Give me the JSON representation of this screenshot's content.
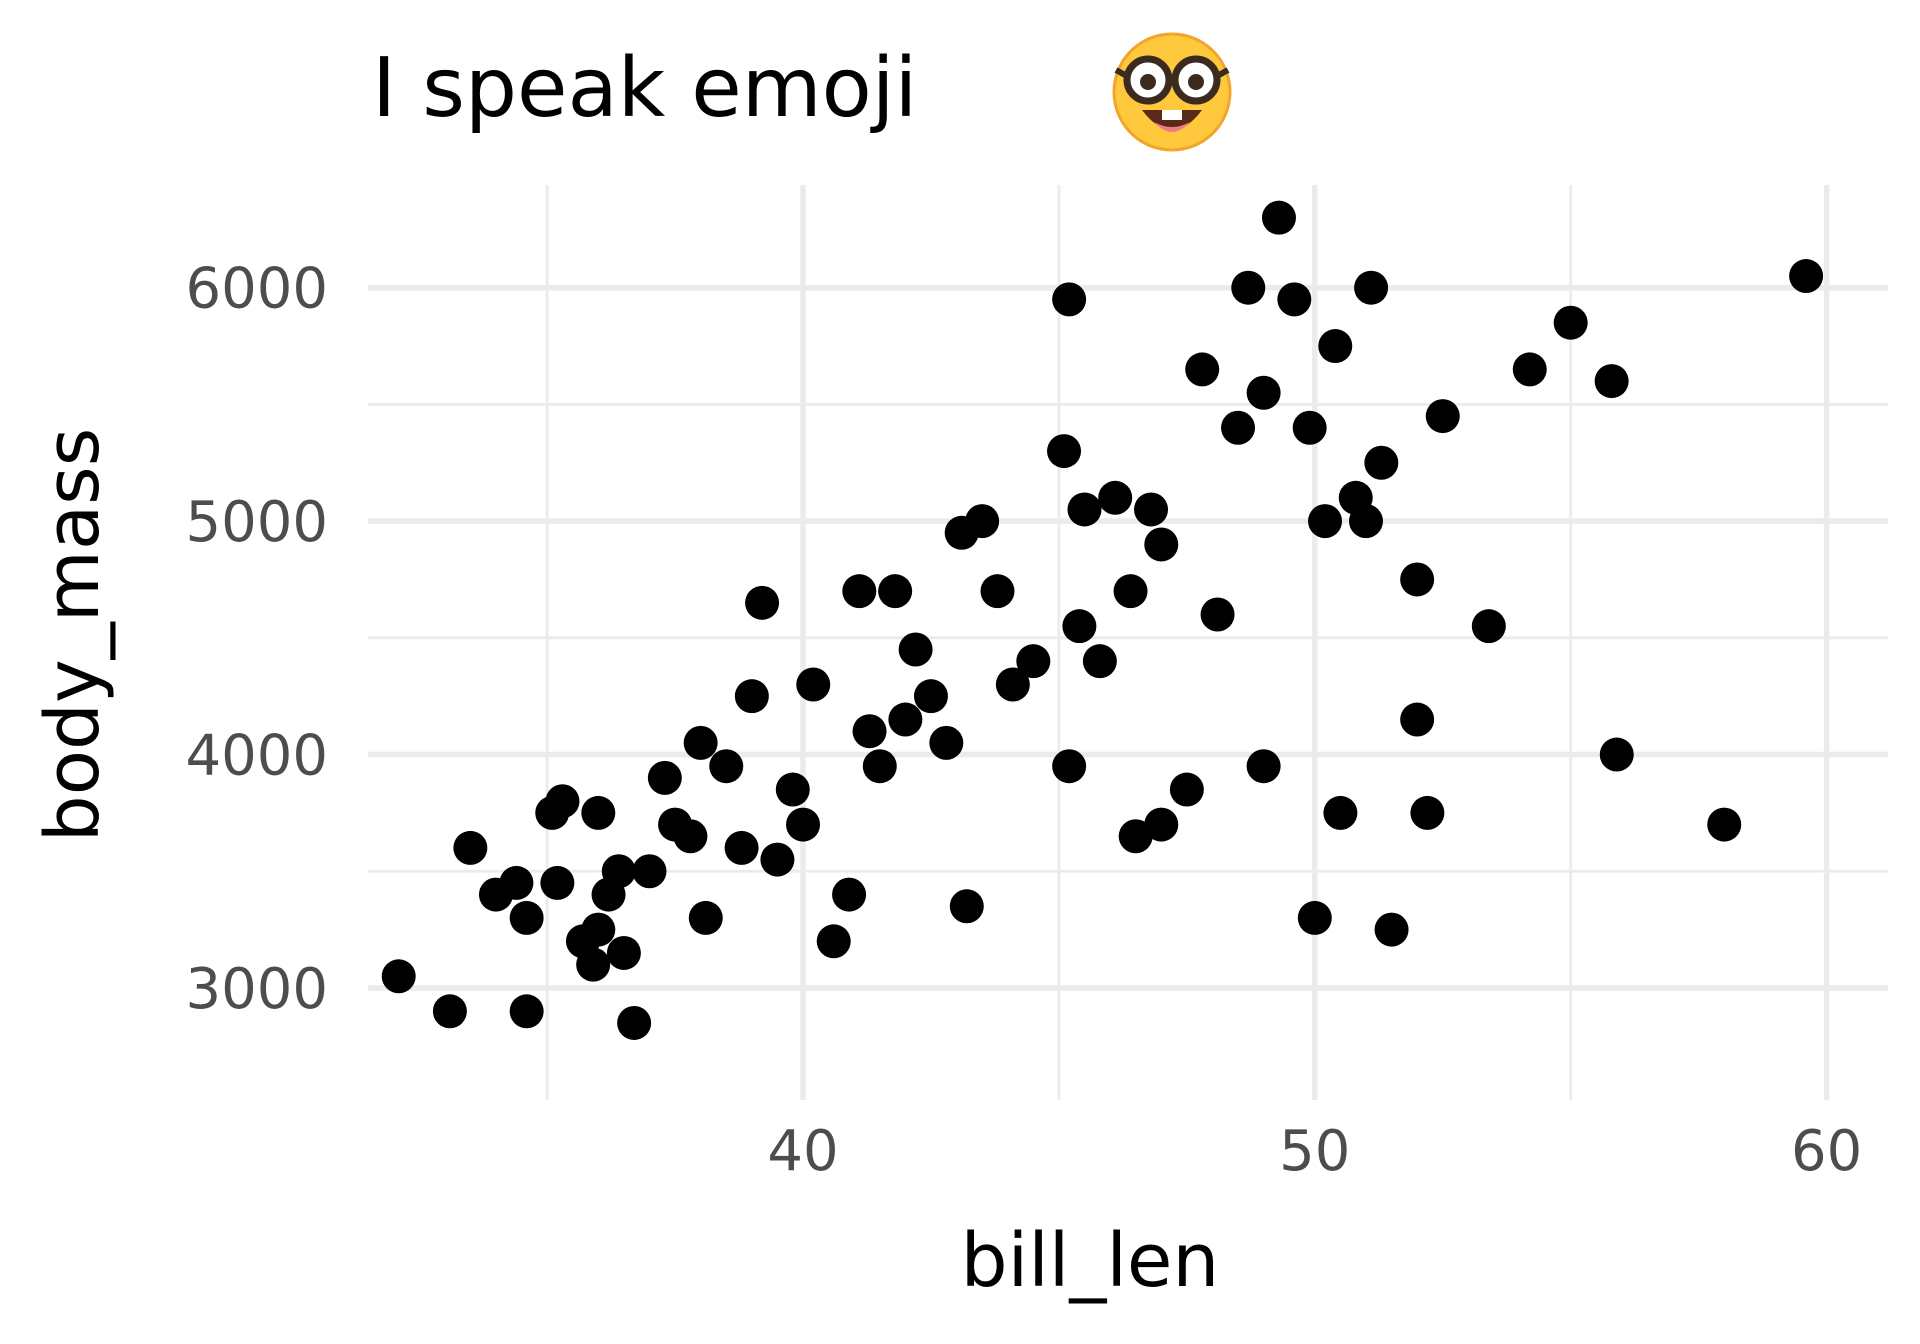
{
  "chart_data": {
    "type": "scatter",
    "title": "I speak emoji",
    "title_emoji": "nerd-face-emoji",
    "xlabel": "bill_len",
    "ylabel": "body_mass",
    "xlim": [
      31.5,
      61.2
    ],
    "ylim": [
      2520,
      6440
    ],
    "x_ticks": [
      {
        "value": 40,
        "label": "40"
      },
      {
        "value": 50,
        "label": "50"
      },
      {
        "value": 60,
        "label": "60"
      }
    ],
    "x_minor": [
      35,
      45,
      55
    ],
    "y_ticks": [
      {
        "value": 3000,
        "label": "3000"
      },
      {
        "value": 4000,
        "label": "4000"
      },
      {
        "value": 5000,
        "label": "5000"
      },
      {
        "value": 6000,
        "label": "6000"
      }
    ],
    "y_minor": [
      3500,
      4500,
      5500
    ],
    "grid": true,
    "legend": "none",
    "point_color": "#000000",
    "grid_color": "#ebebeb",
    "tick_label_color": "#4d4d4d",
    "series": [
      {
        "x": [
          32.1,
          33.1,
          33.5,
          34.0,
          34.4,
          34.6,
          34.6,
          35.1,
          35.2,
          35.3,
          35.7,
          35.9,
          36.0,
          36.2,
          36.4,
          36.5,
          36.7,
          37.0,
          37.3,
          37.5,
          37.8,
          38.1,
          38.5,
          38.8,
          39.0,
          39.2,
          39.5,
          39.8,
          40.2,
          40.6,
          40.9,
          41.1,
          41.3,
          41.5,
          41.8,
          42.2,
          42.5,
          42.8,
          43.1,
          43.2,
          43.5,
          43.8,
          44.1,
          44.5,
          45.1,
          45.2,
          45.4,
          45.5,
          45.8,
          46.1,
          46.4,
          46.5,
          46.8,
          47.0,
          47.5,
          47.8,
          48.1,
          48.5,
          48.7,
          49.0,
          49.3,
          49.6,
          49.9,
          50.0,
          50.2,
          50.4,
          50.5,
          50.8,
          51.1,
          51.3,
          51.5,
          52.0,
          52.2,
          52.5,
          53.4,
          54.2,
          55.0,
          55.8,
          55.9,
          58.0,
          59.6,
          45.2,
          49.0,
          51.0,
          52.0,
          47.0,
          42.0,
          40.0,
          38.0,
          36.0
        ],
        "y": [
          3050,
          2900,
          3600,
          3400,
          3450,
          3300,
          2900,
          3750,
          3450,
          3800,
          3200,
          3100,
          3750,
          3400,
          3500,
          3150,
          2850,
          3500,
          3900,
          3700,
          3650,
          3300,
          3950,
          3600,
          4250,
          4650,
          3550,
          3850,
          4300,
          3200,
          3400,
          4700,
          4100,
          3950,
          4700,
          4450,
          4250,
          4050,
          4950,
          3350,
          5000,
          4700,
          4300,
          4400,
          5300,
          3950,
          4550,
          5050,
          4400,
          5100,
          4700,
          3650,
          5050,
          4900,
          3850,
          5650,
          4600,
          5400,
          6000,
          3950,
          6300,
          5950,
          5400,
          3300,
          5000,
          5750,
          3750,
          5100,
          6000,
          5250,
          3250,
          4150,
          3750,
          5450,
          4550,
          5650,
          5850,
          5600,
          4000,
          3700,
          6050,
          5950,
          5550,
          5000,
          4750,
          3700,
          4150,
          3700,
          4050,
          3250
        ]
      }
    ]
  }
}
